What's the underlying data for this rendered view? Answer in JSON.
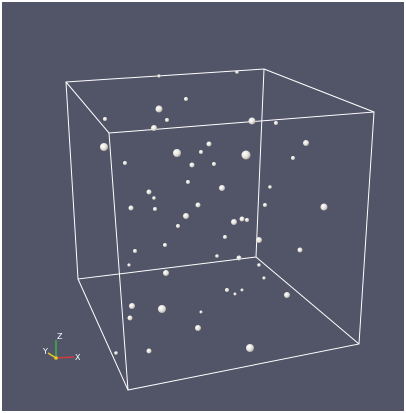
{
  "viewport": {
    "background": "#525468",
    "bounding_box_color": "#ffffff",
    "particle_color": "#e4e2db"
  },
  "orientation_axes": {
    "x": {
      "label": "X",
      "color": "#d23c3c"
    },
    "y": {
      "label": "Y",
      "color": "#e6c828"
    },
    "z": {
      "label": "Z",
      "color": "#3cb446"
    }
  }
}
